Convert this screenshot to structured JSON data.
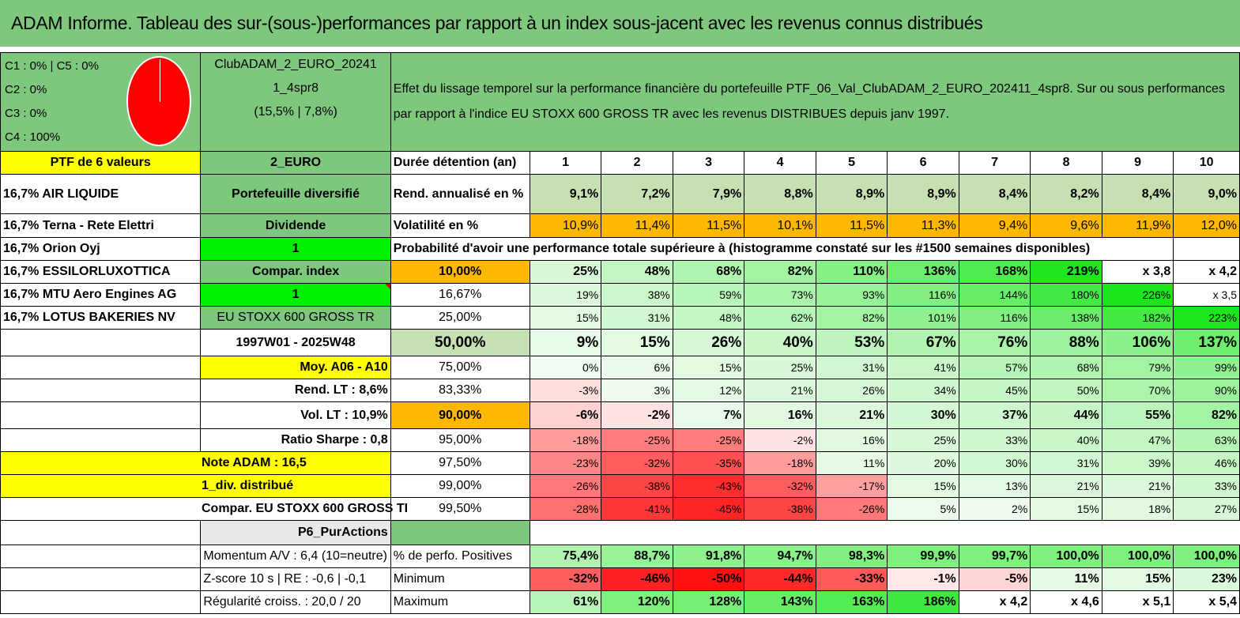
{
  "title": "ADAM Informe. Tableau des sur-(sous-)performances par rapport à un index sous-jacent avec les revenus connus distribués",
  "legend": [
    "C1 : 0% | C5 : 0%",
    "C2 : 0%",
    "C3 : 0%",
    "C4 : 100%"
  ],
  "pie_color": "#ff0000",
  "ptf_name": [
    "ClubADAM_2_EURO_20241",
    "1_4spr8",
    "(15,5% | 7,8%)"
  ],
  "effect_text": "Effet du lissage temporel sur la performance financière du portefeuille PTF_06_Val_ClubADAM_2_EURO_202411_4spr8. Sur ou sous performances par rapport à l'indice EU STOXX 600 GROSS TR avec les revenus DISTRIBUES depuis janv 1997.",
  "ptf_count": "PTF de 6 valeurs",
  "category": "2_EURO",
  "duration_label": "Durée détention (an)",
  "years": [
    "1",
    "2",
    "3",
    "4",
    "5",
    "6",
    "7",
    "8",
    "9",
    "10"
  ],
  "holdings": [
    "16,7% AIR LIQUIDE",
    "16,7% Terna - Rete Elettri",
    "16,7% Orion Oyj",
    "16,7% ESSILORLUXOTTICA",
    "16,7% MTU Aero Engines AG",
    "16,7% LOTUS BAKERIES NV"
  ],
  "side": {
    "diversified": "Portefeuille diversifié",
    "dividend": "Dividende",
    "one_a": "1",
    "compar_index": "Compar. index",
    "one_b": "1",
    "index_name": "EU STOXX 600 GROSS TR",
    "period": "1997W01 - 2025W48",
    "moy": "Moy. A06 - A10",
    "rend_lt": "Rend. LT : 8,6%",
    "vol_lt": "Vol. LT : 10,9%",
    "sharpe": "Ratio Sharpe : 0,8",
    "note": "Note ADAM : 16,5",
    "div": "1_div. distribué",
    "compar": "Compar. EU STOXX 600 GROSS TI",
    "pur": "P6_PurActions",
    "momentum": "Momentum A/V : 6,4 (10=neutre)",
    "zscore": "Z-score 10 s | RE : -0,6 | -0,1",
    "regularite": "Régularité croiss. : 20,0 / 20"
  },
  "rend": {
    "label": "Rend. annualisé en %",
    "values": [
      "9,1%",
      "7,2%",
      "7,9%",
      "8,8%",
      "8,9%",
      "8,9%",
      "8,4%",
      "8,2%",
      "8,4%",
      "9,0%"
    ]
  },
  "vol": {
    "label": "Volatilité en %",
    "values": [
      "10,9%",
      "11,4%",
      "11,5%",
      "10,1%",
      "11,5%",
      "11,3%",
      "9,4%",
      "9,6%",
      "11,9%",
      "12,0%"
    ]
  },
  "prob_label": "Probabilité d'avoir une performance totale supérieure à (histogramme constaté sur les #1500 semaines disponibles)",
  "prob_rows": [
    {
      "p": "10,00%",
      "values": [
        "25%",
        "48%",
        "68%",
        "82%",
        "110%",
        "136%",
        "168%",
        "219%",
        "x 3,8",
        "x 4,2"
      ]
    },
    {
      "p": "16,67%",
      "values": [
        "19%",
        "38%",
        "59%",
        "73%",
        "93%",
        "116%",
        "144%",
        "180%",
        "226%",
        "x 3,5"
      ]
    },
    {
      "p": "25,00%",
      "values": [
        "15%",
        "31%",
        "48%",
        "62%",
        "82%",
        "101%",
        "116%",
        "138%",
        "182%",
        "223%"
      ]
    },
    {
      "p": "50,00%",
      "values": [
        "9%",
        "15%",
        "26%",
        "40%",
        "53%",
        "67%",
        "76%",
        "88%",
        "106%",
        "137%"
      ]
    },
    {
      "p": "75,00%",
      "values": [
        "0%",
        "6%",
        "15%",
        "25%",
        "31%",
        "41%",
        "57%",
        "68%",
        "79%",
        "99%"
      ]
    },
    {
      "p": "83,33%",
      "values": [
        "-3%",
        "3%",
        "12%",
        "21%",
        "26%",
        "34%",
        "45%",
        "50%",
        "70%",
        "90%"
      ]
    },
    {
      "p": "90,00%",
      "values": [
        "-6%",
        "-2%",
        "7%",
        "16%",
        "21%",
        "30%",
        "37%",
        "44%",
        "55%",
        "82%"
      ]
    },
    {
      "p": "95,00%",
      "values": [
        "-18%",
        "-25%",
        "-25%",
        "-2%",
        "16%",
        "25%",
        "33%",
        "40%",
        "47%",
        "63%"
      ]
    },
    {
      "p": "97,50%",
      "values": [
        "-23%",
        "-32%",
        "-35%",
        "-18%",
        "11%",
        "20%",
        "30%",
        "31%",
        "39%",
        "46%"
      ]
    },
    {
      "p": "99,00%",
      "values": [
        "-26%",
        "-38%",
        "-43%",
        "-32%",
        "-17%",
        "15%",
        "13%",
        "21%",
        "21%",
        "33%"
      ]
    },
    {
      "p": "99,50%",
      "values": [
        "-28%",
        "-41%",
        "-45%",
        "-38%",
        "-26%",
        "5%",
        "2%",
        "15%",
        "18%",
        "27%"
      ]
    }
  ],
  "pos": {
    "label": "% de perfo. Positives",
    "values": [
      "75,4%",
      "88,7%",
      "91,8%",
      "94,7%",
      "98,3%",
      "99,9%",
      "99,7%",
      "100,0%",
      "100,0%",
      "100,0%"
    ]
  },
  "min": {
    "label": "Minimum",
    "values": [
      "-32%",
      "-46%",
      "-50%",
      "-44%",
      "-33%",
      "-1%",
      "-5%",
      "11%",
      "15%",
      "23%"
    ]
  },
  "max": {
    "label": "Maximum",
    "values": [
      "61%",
      "120%",
      "128%",
      "143%",
      "163%",
      "186%",
      "x 4,2",
      "x 4,6",
      "x 5,1",
      "x 5,4"
    ]
  }
}
